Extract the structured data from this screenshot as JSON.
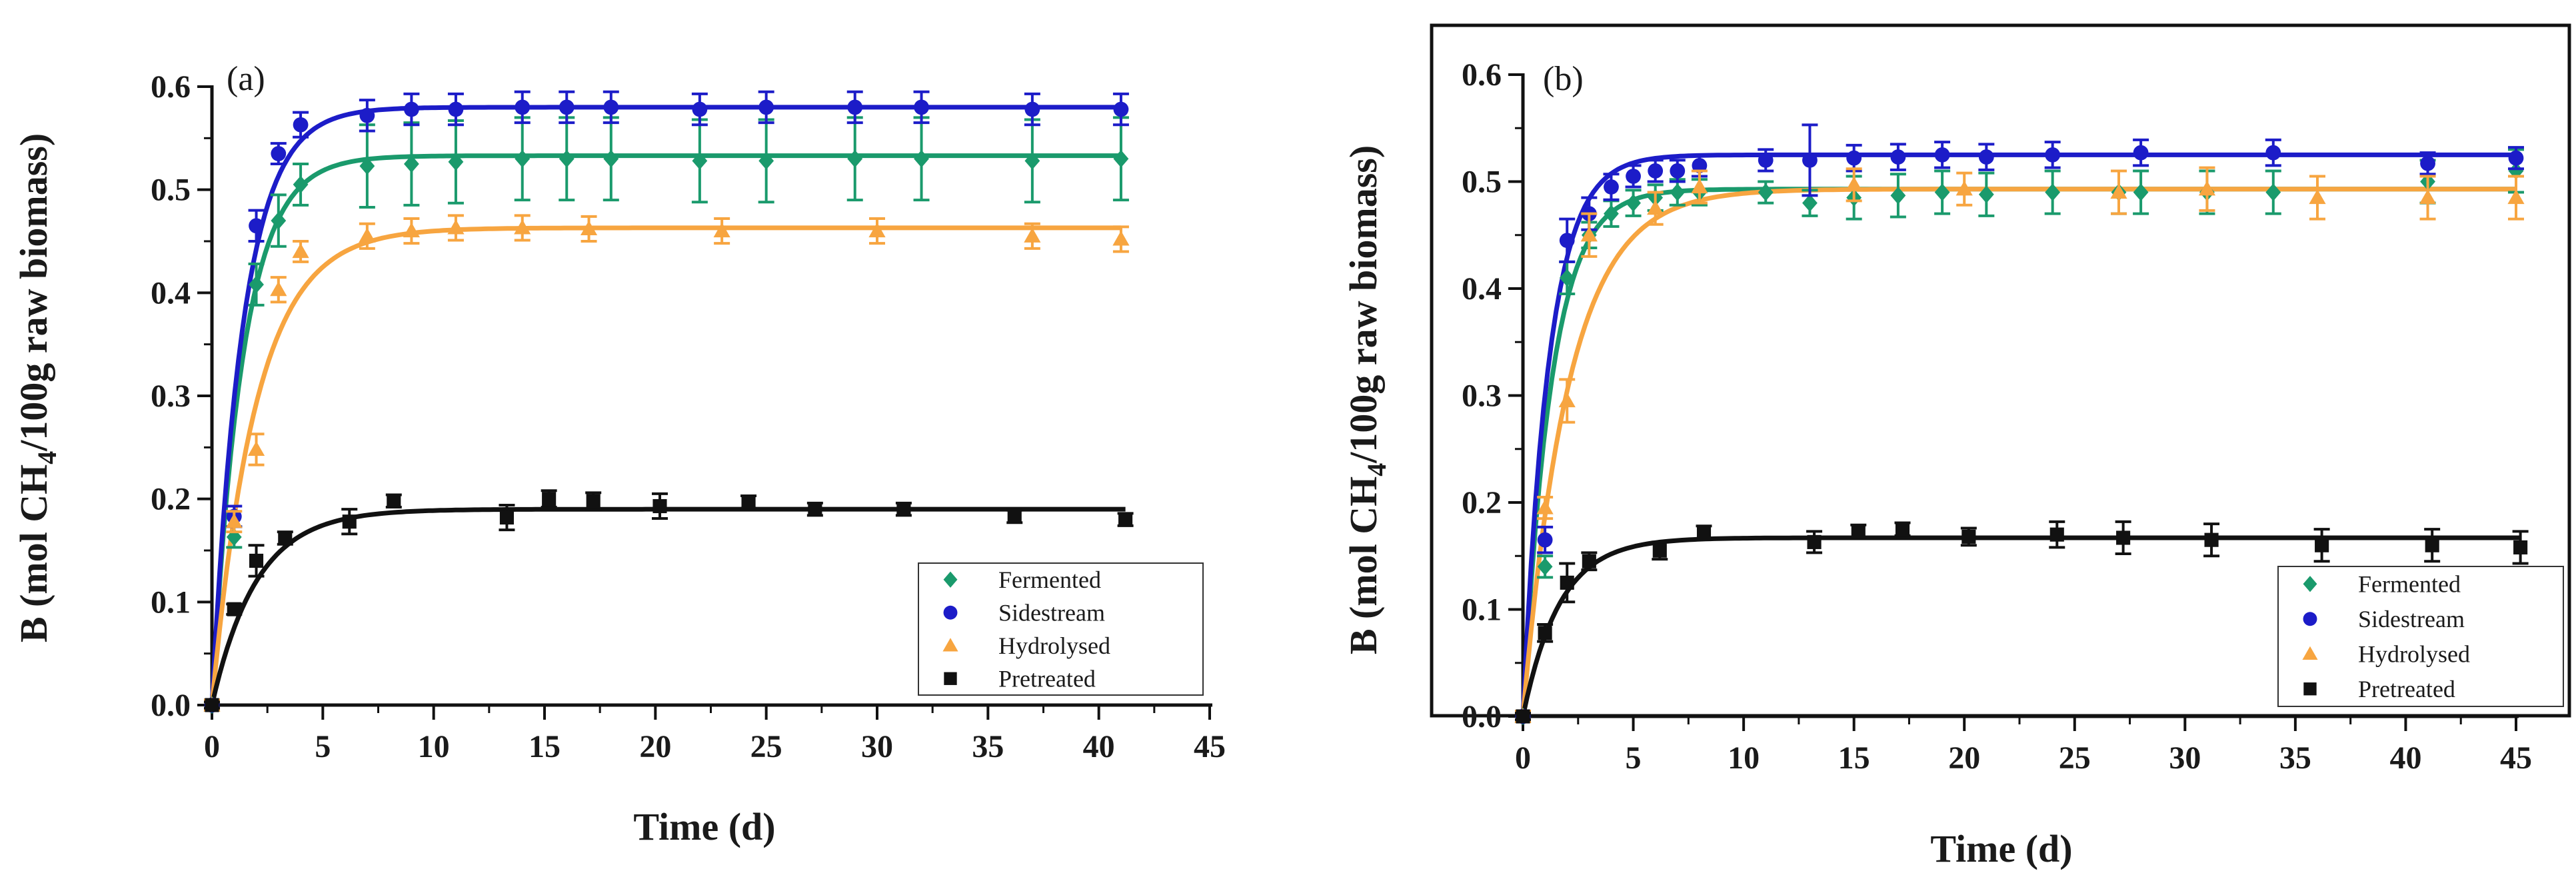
{
  "colors": {
    "Fermented": "#1a9a6c",
    "Sidestream": "#1c1cc8",
    "Hydrolysed": "#f7a540",
    "Pretreated": "#111111"
  },
  "ylabel_parts": {
    "prefix": "B (mol CH",
    "sub": "4",
    "suffix": "/100g raw biomass)"
  },
  "chart_data": [
    {
      "type": "scatter",
      "panel_label": "(a)",
      "xlabel": "Time (d)",
      "xlim": [
        0,
        45
      ],
      "ylim": [
        0,
        0.6
      ],
      "xticks": [
        "0",
        "5",
        "10",
        "15",
        "20",
        "25",
        "30",
        "35",
        "40",
        "45"
      ],
      "yticks": [
        "0.0",
        "0.1",
        "0.2",
        "0.3",
        "0.4",
        "0.5",
        "0.6"
      ],
      "legend_position": "bottom-right",
      "fit_lines": true,
      "series": [
        {
          "name": "Fermented",
          "marker": "diamond",
          "plateau": 0.533,
          "rate": 0.72,
          "x": [
            0,
            1,
            2,
            3,
            4,
            7,
            9,
            11,
            14,
            16,
            18,
            22,
            25,
            29,
            32,
            37,
            41
          ],
          "y": [
            0,
            0.163,
            0.408,
            0.47,
            0.505,
            0.523,
            0.525,
            0.527,
            0.53,
            0.53,
            0.53,
            0.528,
            0.528,
            0.53,
            0.53,
            0.528,
            0.53
          ],
          "err": [
            0.005,
            0.01,
            0.02,
            0.025,
            0.02,
            0.04,
            0.04,
            0.04,
            0.04,
            0.04,
            0.04,
            0.04,
            0.04,
            0.04,
            0.04,
            0.04,
            0.04
          ]
        },
        {
          "name": "Sidestream",
          "marker": "circle",
          "plateau": 0.58,
          "rate": 0.72,
          "x": [
            0,
            1,
            2,
            3,
            4,
            7,
            9,
            11,
            14,
            16,
            18,
            22,
            25,
            29,
            32,
            37,
            41
          ],
          "y": [
            0,
            0.183,
            0.465,
            0.535,
            0.563,
            0.572,
            0.578,
            0.578,
            0.58,
            0.58,
            0.58,
            0.578,
            0.58,
            0.58,
            0.58,
            0.578,
            0.578
          ],
          "err": [
            0.005,
            0.01,
            0.015,
            0.01,
            0.012,
            0.015,
            0.015,
            0.015,
            0.015,
            0.015,
            0.015,
            0.015,
            0.015,
            0.015,
            0.015,
            0.015,
            0.015
          ]
        },
        {
          "name": "Hydrolysed",
          "marker": "triangle",
          "plateau": 0.463,
          "rate": 0.5,
          "x": [
            0,
            1,
            2,
            3,
            4,
            7,
            9,
            11,
            14,
            17,
            23,
            30,
            37,
            41
          ],
          "y": [
            0,
            0.178,
            0.248,
            0.403,
            0.44,
            0.455,
            0.46,
            0.463,
            0.463,
            0.462,
            0.46,
            0.46,
            0.455,
            0.452
          ],
          "err": [
            0.005,
            0.01,
            0.015,
            0.012,
            0.01,
            0.012,
            0.012,
            0.012,
            0.012,
            0.012,
            0.012,
            0.012,
            0.012,
            0.012
          ]
        },
        {
          "name": "Pretreated",
          "marker": "square",
          "plateau": 0.19,
          "rate": 0.5,
          "x": [
            0,
            1,
            2,
            3.3,
            6.2,
            8.2,
            13.3,
            15.2,
            17.2,
            20.2,
            24.2,
            27.2,
            31.2,
            36.2,
            41.2
          ],
          "y": [
            0,
            0.093,
            0.14,
            0.162,
            0.178,
            0.198,
            0.182,
            0.2,
            0.198,
            0.193,
            0.197,
            0.19,
            0.19,
            0.183,
            0.18
          ],
          "err": [
            0.003,
            0.005,
            0.015,
            0.006,
            0.012,
            0.006,
            0.012,
            0.008,
            0.008,
            0.012,
            0.006,
            0.006,
            0.006,
            0.006,
            0.006
          ]
        }
      ]
    },
    {
      "type": "scatter",
      "panel_label": "(b)",
      "xlabel": "Time (d)",
      "xlim": [
        0,
        45
      ],
      "ylim": [
        0,
        0.6
      ],
      "xticks": [
        "0",
        "5",
        "10",
        "15",
        "20",
        "25",
        "30",
        "35",
        "40",
        "45"
      ],
      "yticks": [
        "0.0",
        "0.1",
        "0.2",
        "0.3",
        "0.4",
        "0.5",
        "0.6"
      ],
      "legend_position": "bottom-right",
      "fit_lines": true,
      "series": [
        {
          "name": "Fermented",
          "marker": "diamond",
          "plateau": 0.493,
          "rate": 0.78,
          "x": [
            0,
            1,
            2,
            3,
            4,
            5,
            6,
            7,
            8,
            11,
            13,
            15,
            17,
            19,
            21,
            24,
            27,
            28,
            31,
            34,
            41,
            45
          ],
          "y": [
            0,
            0.14,
            0.41,
            0.45,
            0.47,
            0.48,
            0.485,
            0.49,
            0.49,
            0.49,
            0.48,
            0.485,
            0.487,
            0.49,
            0.488,
            0.49,
            0.49,
            0.49,
            0.49,
            0.49,
            0.5,
            0.51
          ],
          "err": [
            0.005,
            0.01,
            0.015,
            0.012,
            0.012,
            0.012,
            0.012,
            0.012,
            0.012,
            0.01,
            0.012,
            0.02,
            0.02,
            0.02,
            0.02,
            0.02,
            0.02,
            0.02,
            0.02,
            0.02,
            0.02,
            0.02
          ]
        },
        {
          "name": "Sidestream",
          "marker": "circle",
          "plateau": 0.525,
          "rate": 0.85,
          "x": [
            0,
            1,
            2,
            3,
            4,
            5,
            6,
            7,
            8,
            11,
            13,
            15,
            17,
            19,
            21,
            24,
            28,
            34,
            41,
            45
          ],
          "y": [
            0,
            0.165,
            0.445,
            0.47,
            0.495,
            0.505,
            0.51,
            0.51,
            0.515,
            0.52,
            0.52,
            0.522,
            0.523,
            0.525,
            0.523,
            0.525,
            0.527,
            0.527,
            0.517,
            0.522
          ],
          "err": [
            0.005,
            0.012,
            0.02,
            0.015,
            0.012,
            0.01,
            0.01,
            0.01,
            0.01,
            0.01,
            0.033,
            0.012,
            0.012,
            0.012,
            0.012,
            0.012,
            0.012,
            0.012,
            0.01,
            0.01
          ]
        },
        {
          "name": "Hydrolysed",
          "marker": "triangle",
          "plateau": 0.493,
          "rate": 0.48,
          "x": [
            0,
            1,
            2,
            3,
            6,
            8,
            15,
            20,
            27,
            31,
            36,
            41,
            45
          ],
          "y": [
            0,
            0.195,
            0.295,
            0.45,
            0.475,
            0.495,
            0.497,
            0.493,
            0.49,
            0.493,
            0.485,
            0.485,
            0.485
          ],
          "err": [
            0.005,
            0.01,
            0.02,
            0.02,
            0.015,
            0.015,
            0.015,
            0.015,
            0.02,
            0.02,
            0.02,
            0.02,
            0.02
          ]
        },
        {
          "name": "Pretreated",
          "marker": "square",
          "plateau": 0.167,
          "rate": 0.6,
          "x": [
            0,
            1,
            2,
            3,
            6.2,
            8.2,
            13.2,
            15.2,
            17.2,
            20.2,
            24.2,
            27.2,
            31.2,
            36.2,
            41.2,
            45.2
          ],
          "y": [
            0,
            0.078,
            0.125,
            0.145,
            0.155,
            0.172,
            0.163,
            0.173,
            0.175,
            0.168,
            0.17,
            0.167,
            0.165,
            0.16,
            0.16,
            0.158
          ],
          "err": [
            0.003,
            0.008,
            0.018,
            0.008,
            0.008,
            0.006,
            0.01,
            0.006,
            0.006,
            0.008,
            0.012,
            0.015,
            0.015,
            0.015,
            0.015,
            0.015
          ]
        }
      ]
    }
  ]
}
